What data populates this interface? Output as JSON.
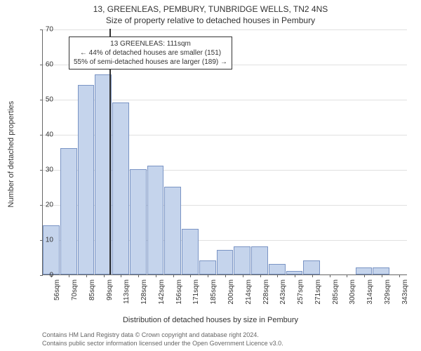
{
  "title_line1": "13, GREENLEAS, PEMBURY, TUNBRIDGE WELLS, TN2 4NS",
  "title_line2": "Size of property relative to detached houses in Pembury",
  "yaxis_label": "Number of detached properties",
  "xaxis_label": "Distribution of detached houses by size in Pembury",
  "footer_line1": "Contains HM Land Registry data © Crown copyright and database right 2024.",
  "footer_line2": "Contains public sector information licensed under the Open Government Licence v3.0.",
  "chart": {
    "type": "histogram",
    "ylim": [
      0,
      70
    ],
    "ytick_step": 10,
    "xcategories": [
      "56sqm",
      "70sqm",
      "85sqm",
      "99sqm",
      "113sqm",
      "128sqm",
      "142sqm",
      "156sqm",
      "171sqm",
      "185sqm",
      "200sqm",
      "214sqm",
      "228sqm",
      "243sqm",
      "257sqm",
      "271sqm",
      "285sqm",
      "300sqm",
      "314sqm",
      "329sqm",
      "343sqm"
    ],
    "values": [
      14,
      36,
      54,
      57,
      49,
      30,
      31,
      25,
      13,
      4,
      7,
      8,
      8,
      3,
      1,
      4,
      0,
      0,
      2,
      2,
      0
    ],
    "bar_color": "#c5d4ec",
    "bar_border_color": "#7a94c4",
    "grid_color": "#e0e0e0",
    "axis_color": "#666666",
    "background_color": "#ffffff",
    "marker_index": 3.85,
    "marker_color": "#333333"
  },
  "annotation": {
    "line1": "13 GREENLEAS: 111sqm",
    "line2": "← 44% of detached houses are smaller (151)",
    "line3": "55% of semi-detached houses are larger (189) →"
  }
}
